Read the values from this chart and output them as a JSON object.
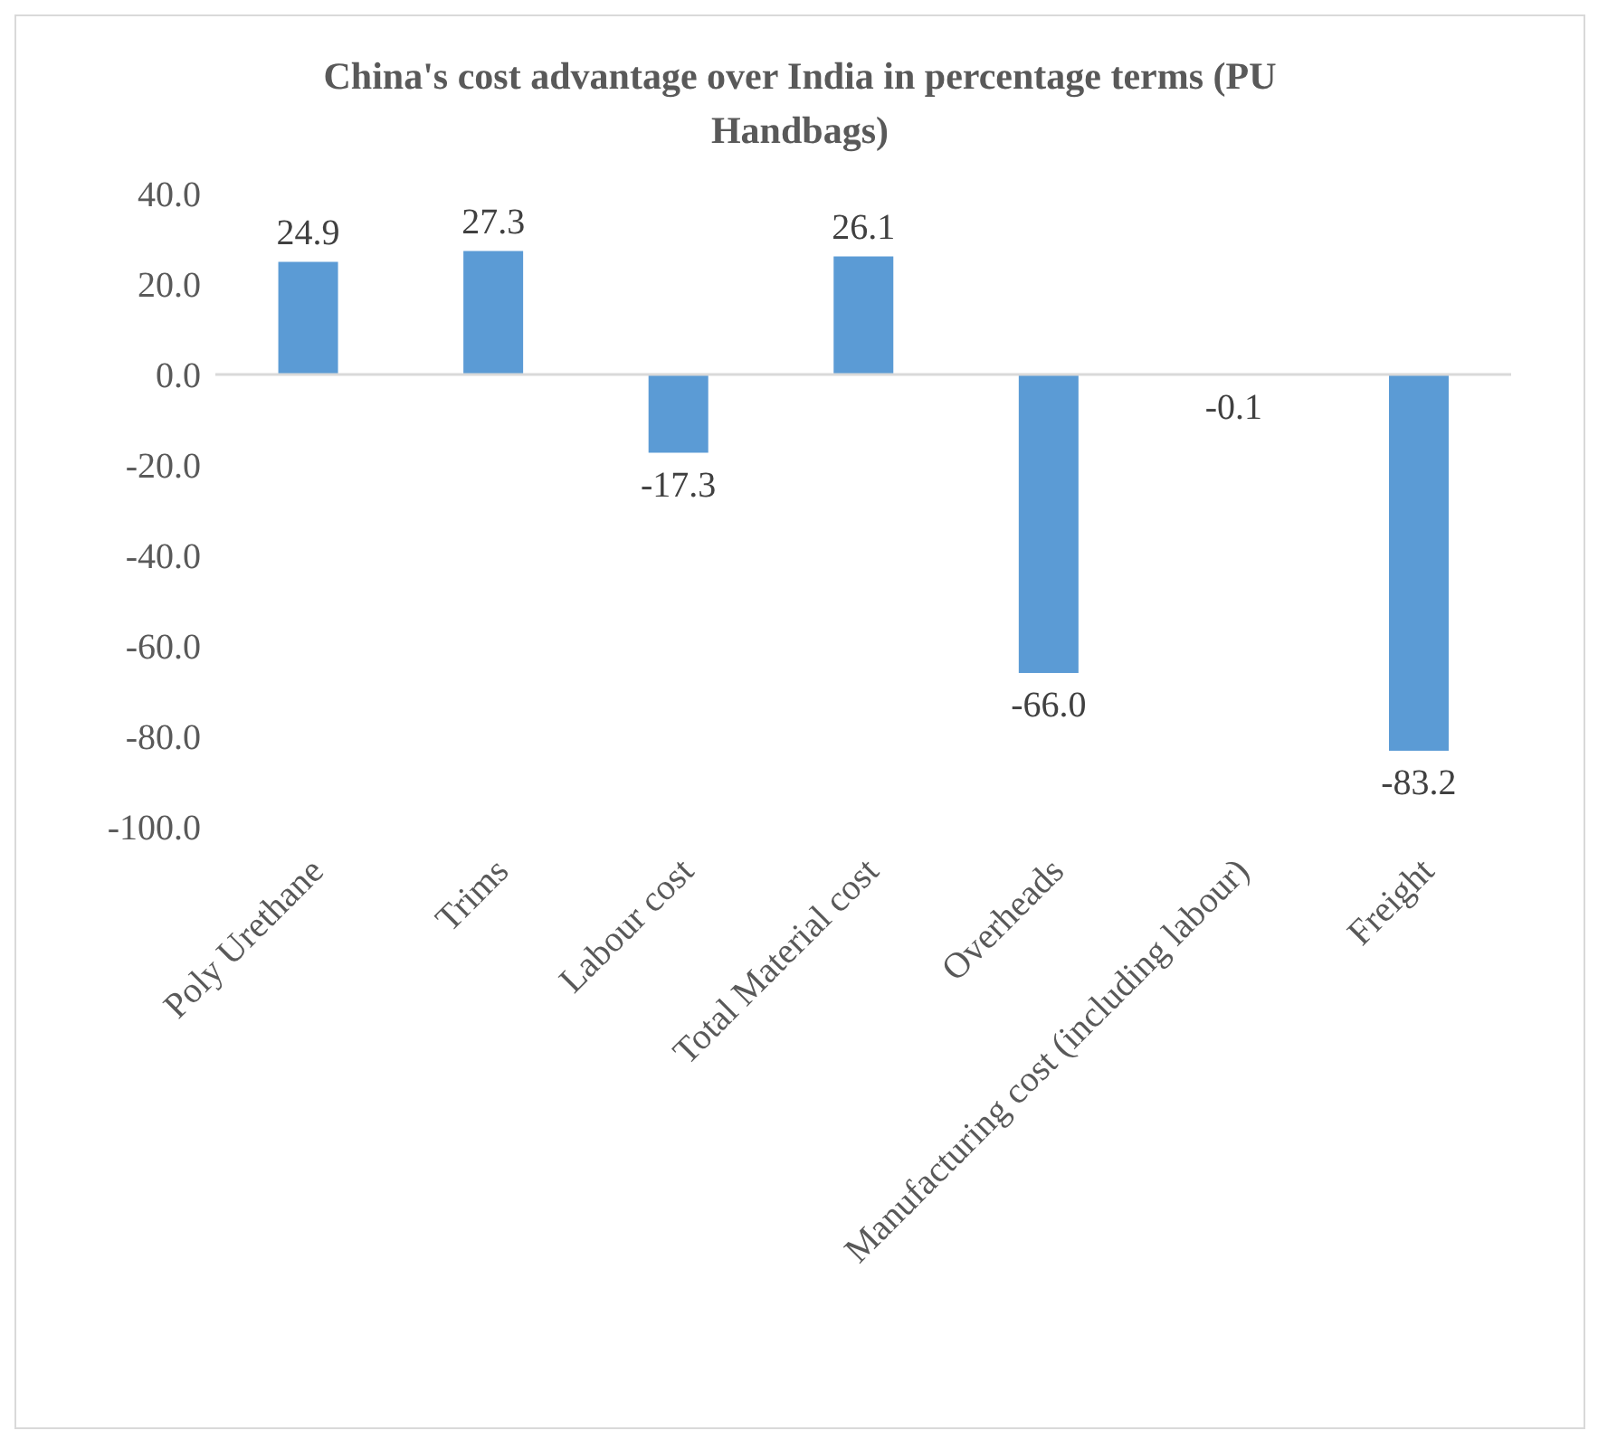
{
  "chart_data": {
    "type": "bar",
    "title": "China's cost advantage over India in percentage terms (PU Handbags)",
    "categories": [
      "Poly Urethane",
      "Trims",
      "Labour cost",
      "Total Material cost",
      "Overheads",
      "Manufacturing cost (including labour)",
      "Freight"
    ],
    "values": [
      24.9,
      27.3,
      -17.3,
      26.1,
      -66.0,
      -0.1,
      -83.2
    ],
    "value_labels": [
      "24.9",
      "27.3",
      "-17.3",
      "26.1",
      "-66.0",
      "-0.1",
      "-83.2"
    ],
    "color": "#5b9bd5",
    "ylim": [
      -100,
      40
    ],
    "yticks": [
      {
        "value": -100,
        "label": "-100.0"
      },
      {
        "value": -80,
        "label": "-80.0"
      },
      {
        "value": -60,
        "label": "-60.0"
      },
      {
        "value": -40,
        "label": "-40.0"
      },
      {
        "value": -20,
        "label": "-20.0"
      },
      {
        "value": 0,
        "label": "0.0"
      },
      {
        "value": 20,
        "label": "20.0"
      },
      {
        "value": 40,
        "label": "40.0"
      }
    ],
    "legend": false
  }
}
